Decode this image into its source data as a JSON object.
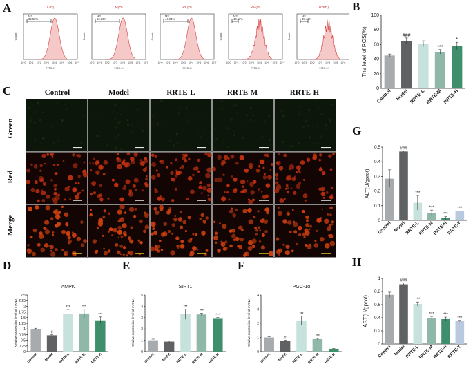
{
  "panels": {
    "a": "A",
    "b": "B",
    "c": "C",
    "d": "D",
    "e": "E",
    "f": "F",
    "g": "G",
    "h": "H"
  },
  "flow": {
    "ylabel": "Count",
    "xlabel": "FITC-H",
    "items": [
      {
        "title": "C(H)",
        "gate": "M2",
        "pct": "32.58%"
      },
      {
        "title": "M(H)",
        "gate": "M2",
        "pct": "62.26%"
      },
      {
        "title": "RL(H)",
        "gate": "M2",
        "pct": "44.94%"
      },
      {
        "title": "RM(H)",
        "gate": "M2",
        "pct": "46.11%"
      },
      {
        "title": "RH(H)",
        "gate": "M2",
        "pct": "48.41%"
      }
    ],
    "ticks": [
      "10^0",
      "10^1",
      "10^2",
      "10^3",
      "10^4",
      "10^5",
      "10^6",
      "10^7"
    ]
  },
  "micro": {
    "columns": [
      "Control",
      "Model",
      "RRTE-L",
      "RRTE-M",
      "RRTE-H"
    ],
    "rows": [
      "Green",
      "Red",
      "Merge"
    ],
    "colors": {
      "green": "#1c2a10",
      "red": "#c03010",
      "merge": "#d04010"
    }
  },
  "chart_data": [
    {
      "id": "B",
      "type": "bar",
      "categories": [
        "Control",
        "Model",
        "RRTE-L",
        "RRTE-M",
        "RRTE-H"
      ],
      "values": [
        45,
        65,
        61,
        50,
        58
      ],
      "errors": [
        2,
        4,
        4,
        3,
        5
      ],
      "significance": [
        "",
        "###",
        "",
        "***",
        "*"
      ],
      "ylabel": "The level of ROS(%)",
      "ylim": [
        0,
        100
      ],
      "yticks": [
        0,
        20,
        40,
        60,
        80,
        100
      ],
      "colors": [
        "#a8abae",
        "#5f6163",
        "#c7e2dc",
        "#8fb8a9",
        "#3f8f6d"
      ]
    },
    {
      "id": "G",
      "type": "bar",
      "categories": [
        "Control",
        "Model",
        "RRTE-L",
        "RRTE-M",
        "RRTE-H",
        "RRTE-Y"
      ],
      "values": [
        0.285,
        0.47,
        0.12,
        0.05,
        0.015,
        0.065
      ],
      "errors": [
        0.06,
        0.005,
        0.05,
        0.02,
        0.01,
        0.0
      ],
      "significance": [
        "",
        "###",
        "***",
        "***",
        "***",
        "***"
      ],
      "ylabel": "ALT(U/gprot)",
      "ylim": [
        0,
        0.5
      ],
      "yticks": [
        0.0,
        0.1,
        0.2,
        0.3,
        0.4,
        0.5
      ],
      "colors": [
        "#a8abae",
        "#5f6163",
        "#c7e2dc",
        "#8fb8a9",
        "#3f8f6d",
        "#b9c9e0"
      ]
    },
    {
      "id": "D",
      "type": "bar",
      "title": "AMPK",
      "categories": [
        "Control",
        "Model",
        "RRTE-L",
        "RRTE-M",
        "RRTE-H"
      ],
      "values": [
        1.0,
        0.72,
        1.66,
        1.68,
        1.38
      ],
      "errors": [
        0.03,
        0.02,
        0.2,
        0.2,
        0.15
      ],
      "significance": [
        "",
        "#",
        "***",
        "***",
        "***"
      ],
      "ylabel": "Relative expression level of mRNA",
      "ylim": [
        0,
        2.5
      ],
      "yticks": [
        0.0,
        0.25,
        0.5,
        0.75,
        1.0,
        1.25,
        1.5,
        1.75,
        2.0,
        2.25,
        2.5
      ],
      "colors": [
        "#a8abae",
        "#5f6163",
        "#c7e2dc",
        "#8fb8a9",
        "#3f8f6d"
      ]
    },
    {
      "id": "E",
      "type": "bar",
      "title": "SIRT1",
      "categories": [
        "Control",
        "Model",
        "RRTE-L",
        "RRTE-M",
        "RRTE-H"
      ],
      "values": [
        1.0,
        0.88,
        3.3,
        3.28,
        2.9
      ],
      "errors": [
        0.1,
        0.05,
        0.45,
        0.1,
        0.12
      ],
      "significance": [
        "",
        "",
        "***",
        "***",
        "***"
      ],
      "ylabel": "Relative expression level of mRNA",
      "ylim": [
        0,
        5
      ],
      "yticks": [
        0,
        1,
        2,
        3,
        4,
        5
      ],
      "colors": [
        "#a8abae",
        "#5f6163",
        "#c7e2dc",
        "#8fb8a9",
        "#3f8f6d"
      ]
    },
    {
      "id": "F",
      "type": "bar",
      "title": "PGC-1α",
      "categories": [
        "Control",
        "Model",
        "RRTE-L",
        "RRTE-M",
        "RRTE-H"
      ],
      "values": [
        1.0,
        0.78,
        2.2,
        0.88,
        0.2
      ],
      "errors": [
        0.05,
        0.03,
        0.3,
        0.05,
        0.03
      ],
      "significance": [
        "",
        "#",
        "***",
        "***",
        ""
      ],
      "ylabel": "Relative expression level of mRNA",
      "ylim": [
        0,
        4
      ],
      "yticks": [
        0,
        1,
        2,
        3,
        4
      ],
      "colors": [
        "#a8abae",
        "#5f6163",
        "#c7e2dc",
        "#8fb8a9",
        "#3f8f6d"
      ]
    },
    {
      "id": "H",
      "type": "bar",
      "categories": [
        "Control",
        "Model",
        "RRTE-L",
        "RRTE-M",
        "RRTE-H",
        "RRTE-Y"
      ],
      "values": [
        0.75,
        0.91,
        0.61,
        0.4,
        0.38,
        0.35
      ],
      "errors": [
        0.04,
        0.02,
        0.03,
        0.02,
        0.03,
        0.01
      ],
      "significance": [
        "",
        "###",
        "***",
        "***",
        "***",
        "***"
      ],
      "ylabel": "AST(U/gprot)",
      "ylim": [
        0,
        1.0
      ],
      "yticks": [
        0.0,
        0.2,
        0.4,
        0.6,
        0.8,
        1.0
      ],
      "colors": [
        "#a8abae",
        "#5f6163",
        "#c7e2dc",
        "#8fb8a9",
        "#3f8f6d",
        "#b9c9e0"
      ]
    }
  ]
}
